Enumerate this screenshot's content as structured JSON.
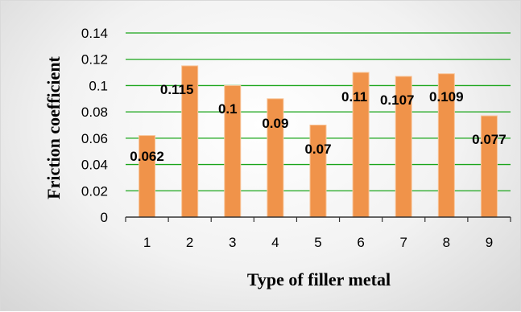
{
  "chart_data": {
    "type": "bar",
    "categories": [
      "1",
      "2",
      "3",
      "4",
      "5",
      "6",
      "7",
      "8",
      "9"
    ],
    "values": [
      0.062,
      0.115,
      0.1,
      0.09,
      0.07,
      0.11,
      0.107,
      0.109,
      0.077
    ],
    "data_labels": [
      "0.062",
      "0.115",
      "0.1",
      "0.09",
      "0.07",
      "0.11",
      "0.107",
      "0.109",
      "0.077"
    ],
    "ytick_labels": [
      "0",
      "0.02",
      "0.04",
      "0.06",
      "0.08",
      "0.1",
      "0.12",
      "0.14"
    ],
    "yticks": [
      0,
      0.02,
      0.04,
      0.06,
      0.08,
      0.1,
      0.12,
      0.14
    ],
    "xlabel": "Type of filler metal",
    "ylabel": "Friction coefficient",
    "ylim": [
      0,
      0.14
    ],
    "grid": true,
    "legend": false
  },
  "colors": {
    "bar": "#f0934a",
    "bar_edge": "#f8c59a",
    "gridline": "#1aa51a",
    "axis": "#333333"
  }
}
